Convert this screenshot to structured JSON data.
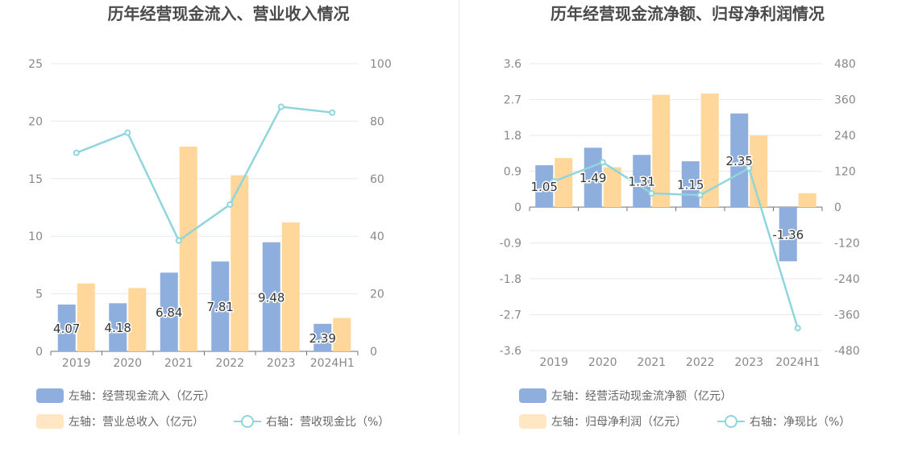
{
  "colors": {
    "blue_bar": "#8eaedd",
    "orange_bar": "#ffd79a",
    "line": "#8fd5dc",
    "grid": "#e6e9f2",
    "axis_text": "#888888",
    "label_text": "#333333"
  },
  "chart_data": [
    {
      "type": "bar",
      "title": "历年经营现金流入、营业收入情况",
      "categories": [
        "2019",
        "2020",
        "2021",
        "2022",
        "2023",
        "2024H1"
      ],
      "y_left_ticks": [
        "0",
        "5",
        "10",
        "15",
        "20",
        "25"
      ],
      "y_right_ticks": [
        "0",
        "20",
        "40",
        "60",
        "80",
        "100"
      ],
      "ylim_left": [
        0,
        25
      ],
      "ylim_right": [
        0,
        100
      ],
      "series": [
        {
          "name": "左轴：经营现金流入（亿元）",
          "axis": "left",
          "kind": "bar",
          "values": [
            4.07,
            4.18,
            6.84,
            7.81,
            9.48,
            2.39
          ],
          "labels": [
            "4.07",
            "4.18",
            "6.84",
            "7.81",
            "9.48",
            "2.39"
          ]
        },
        {
          "name": "左轴：营业总收入（亿元）",
          "axis": "left",
          "kind": "bar",
          "values": [
            5.9,
            5.5,
            17.8,
            15.3,
            11.2,
            2.9
          ]
        },
        {
          "name": "右轴：营收现金比（%）",
          "axis": "right",
          "kind": "line",
          "values": [
            69,
            76,
            38.5,
            51,
            85,
            83
          ]
        }
      ],
      "legend": [
        "左轴：经营现金流入（亿元）",
        "左轴：营业总收入（亿元）",
        "右轴：营收现金比（%）"
      ]
    },
    {
      "type": "bar",
      "title": "历年经营现金流净额、归母净利润情况",
      "categories": [
        "2019",
        "2020",
        "2021",
        "2022",
        "2023",
        "2024H1"
      ],
      "y_left_ticks": [
        "-3.6",
        "-2.7",
        "-1.8",
        "-0.9",
        "0",
        "0.9",
        "1.8",
        "2.7",
        "3.6"
      ],
      "y_right_ticks": [
        "-480",
        "-360",
        "-240",
        "-120",
        "0",
        "120",
        "240",
        "360",
        "480"
      ],
      "ylim_left": [
        -3.6,
        3.6
      ],
      "ylim_right": [
        -480,
        480
      ],
      "series": [
        {
          "name": "左轴：经营活动现金流净额（亿元）",
          "axis": "left",
          "kind": "bar",
          "values": [
            1.05,
            1.49,
            1.31,
            1.15,
            2.35,
            -1.36
          ],
          "labels": [
            "1.05",
            "1.49",
            "1.31",
            "1.15",
            "2.35",
            "-1.36"
          ]
        },
        {
          "name": "左轴：归母净利润（亿元）",
          "axis": "left",
          "kind": "bar",
          "values": [
            1.23,
            1.0,
            2.82,
            2.85,
            1.8,
            0.35
          ]
        },
        {
          "name": "右轴：净现比（%）",
          "axis": "right",
          "kind": "line",
          "values": [
            86,
            150,
            46,
            40,
            130,
            -405
          ]
        }
      ],
      "legend": [
        "左轴：经营活动现金流净额（亿元）",
        "左轴：归母净利润（亿元）",
        "右轴：净现比（%）"
      ]
    }
  ]
}
